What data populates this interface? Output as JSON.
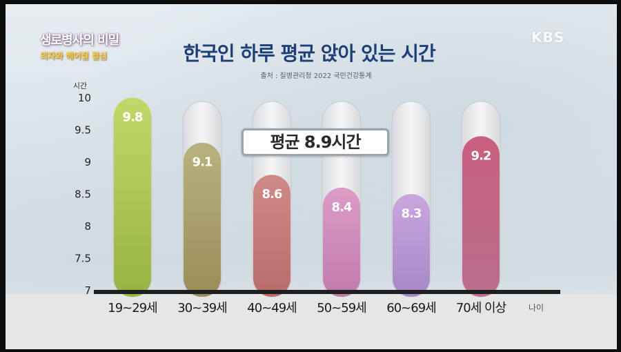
{
  "overlay": {
    "logo_title": "생로병사의 비밀",
    "logo_subtitle": "의자와 헤어질 결심",
    "broadcaster": "KBS"
  },
  "chart_data": {
    "type": "bar",
    "title": "한국인 하루 평균 앉아 있는 시간",
    "source": "출처 : 질병관리청 2022 국민건강통계",
    "ylabel": "시간",
    "xlabel": "나이",
    "ylim": [
      7,
      10
    ],
    "yticks": [
      "10",
      "9.5",
      "9",
      "8.5",
      "8",
      "7.5",
      "7"
    ],
    "categories": [
      "19~29세",
      "30~39세",
      "40~49세",
      "50~59세",
      "60~69세",
      "70세 이상"
    ],
    "values": [
      9.8,
      9.1,
      8.6,
      8.4,
      8.3,
      9.2
    ],
    "value_labels": [
      "9.8",
      "9.1",
      "8.6",
      "8.4",
      "8.3",
      "9.2"
    ],
    "colors": [
      [
        "#c2d86a",
        "#98b340"
      ],
      [
        "#b9b27e",
        "#9a8d58"
      ],
      [
        "#cf8a86",
        "#b86c6a"
      ],
      [
        "#dc9cc6",
        "#c17aae"
      ],
      [
        "#c9a6de",
        "#a688c8"
      ],
      [
        "#c85f7e",
        "#b96e8d"
      ]
    ],
    "annotation": "평균 8.9시간"
  }
}
